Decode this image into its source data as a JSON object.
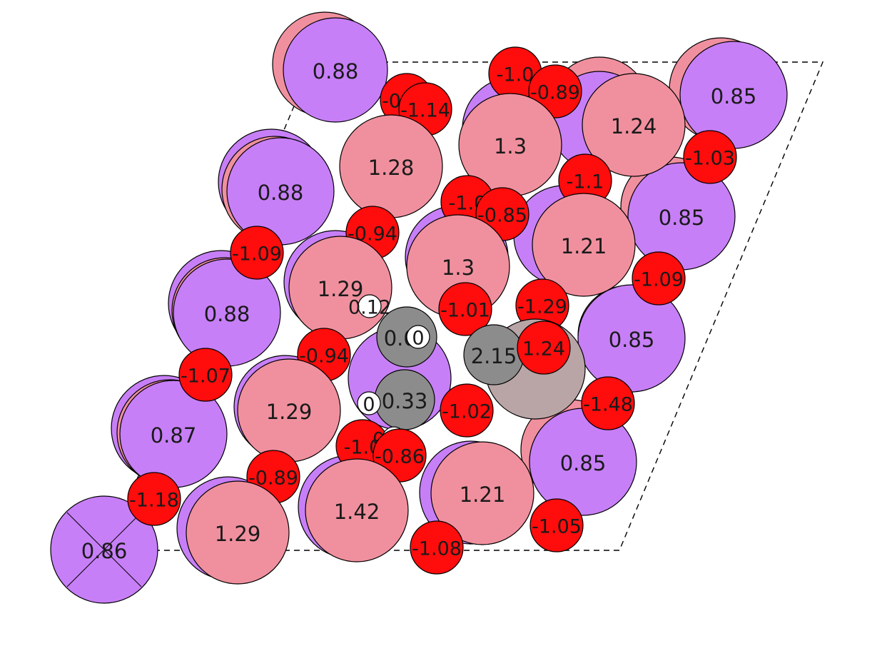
{
  "colors": {
    "K": "#c77ff7",
    "Fe": "#f0909e",
    "O": "#ff0c0c",
    "C": "#8c8c8c",
    "H": "#ffffff",
    "Pt": "#b9a5a6"
  },
  "atoms": [
    {
      "id": "k-bg-1",
      "el": "K",
      "label": "0.88"
    },
    {
      "id": "k-bg-2",
      "el": "K",
      "label": "0.88"
    },
    {
      "id": "k-bg-3",
      "el": "K",
      "label": "0.88"
    },
    {
      "id": "k-bg-4",
      "el": "K",
      "label": "0.87"
    },
    {
      "id": "k-bg-5",
      "el": "K",
      "label": "0.86"
    },
    {
      "id": "k-r1",
      "el": "K",
      "label": "0.85"
    },
    {
      "id": "k-r2",
      "el": "K",
      "label": "0.85"
    },
    {
      "id": "k-r3",
      "el": "K",
      "label": "0.85"
    },
    {
      "id": "k-r4",
      "el": "K",
      "label": "0.85"
    },
    {
      "id": "o-t1",
      "el": "O",
      "label": "-1.0"
    },
    {
      "id": "o-t2",
      "el": "O",
      "label": "-0.89"
    },
    {
      "id": "o-t3",
      "el": "O",
      "label": "-0.95"
    },
    {
      "id": "o-t4",
      "el": "O",
      "label": "-1.14"
    },
    {
      "id": "o-t5",
      "el": "O",
      "label": "-1.03"
    },
    {
      "id": "fe-1",
      "el": "Fe",
      "label": "1.28"
    },
    {
      "id": "fe-2",
      "el": "Fe",
      "label": "1.3"
    },
    {
      "id": "fe-3",
      "el": "Fe",
      "label": "1.24"
    },
    {
      "id": "o-m1",
      "el": "O",
      "label": "-1.1"
    },
    {
      "id": "o-m2",
      "el": "O",
      "label": "-1.0"
    },
    {
      "id": "o-m3",
      "el": "O",
      "label": "-0.85"
    },
    {
      "id": "o-m4",
      "el": "O",
      "label": "-0.94"
    },
    {
      "id": "o-m5",
      "el": "O",
      "label": "-1.09"
    },
    {
      "id": "k-l2",
      "el": "K",
      "label": "0.88"
    },
    {
      "id": "fe-4",
      "el": "Fe",
      "label": "1.3"
    },
    {
      "id": "fe-5",
      "el": "Fe",
      "label": "1.21"
    },
    {
      "id": "fe-6",
      "el": "Fe",
      "label": "1.29"
    },
    {
      "id": "o-m6",
      "el": "O",
      "label": "-1.09"
    },
    {
      "id": "o-m7",
      "el": "O",
      "label": "-1.29"
    },
    {
      "id": "o-m8",
      "el": "O",
      "label": "-1.01"
    },
    {
      "id": "h-1",
      "el": "H",
      "label": "0.12"
    },
    {
      "id": "k-l3",
      "el": "K",
      "label": "0.88"
    },
    {
      "id": "o-m9",
      "el": "O",
      "label": "-0.94"
    },
    {
      "id": "o-m10",
      "el": "O",
      "label": "-1.07"
    },
    {
      "id": "fe-7",
      "el": "Fe",
      "label": "1.29"
    },
    {
      "id": "c-1",
      "el": "C",
      "label": "0.06"
    },
    {
      "id": "h-2",
      "el": "H",
      "label": "0"
    },
    {
      "id": "pt-1",
      "el": "Pt",
      "label": ""
    },
    {
      "id": "c-2",
      "el": "C",
      "label": "2.15"
    },
    {
      "id": "o-m11",
      "el": "O",
      "label": "1.24"
    },
    {
      "id": "c-3",
      "el": "C",
      "label": "0.33"
    },
    {
      "id": "h-3",
      "el": "H",
      "label": "0"
    },
    {
      "id": "o-m12",
      "el": "O",
      "label": "-1.02"
    },
    {
      "id": "o-m13",
      "el": "O",
      "label": "-1.48"
    },
    {
      "id": "k-l4",
      "el": "K",
      "label": "0.87"
    },
    {
      "id": "o-b1",
      "el": "O",
      "label": "-1.0"
    },
    {
      "id": "h-4",
      "el": "H",
      "label": "0.09"
    },
    {
      "id": "o-b2",
      "el": "O",
      "label": "-0.86"
    },
    {
      "id": "o-b3",
      "el": "O",
      "label": "-0.89"
    },
    {
      "id": "o-b4",
      "el": "O",
      "label": "-1.18"
    },
    {
      "id": "fe-8",
      "el": "Fe",
      "label": "1.29"
    },
    {
      "id": "fe-9",
      "el": "Fe",
      "label": "1.42"
    },
    {
      "id": "fe-10",
      "el": "Fe",
      "label": "1.21"
    },
    {
      "id": "o-b5",
      "el": "O",
      "label": "-1.05"
    },
    {
      "id": "o-b6",
      "el": "O",
      "label": "-1.08"
    },
    {
      "id": "k-b1",
      "el": "K",
      "label": "0.86"
    }
  ]
}
